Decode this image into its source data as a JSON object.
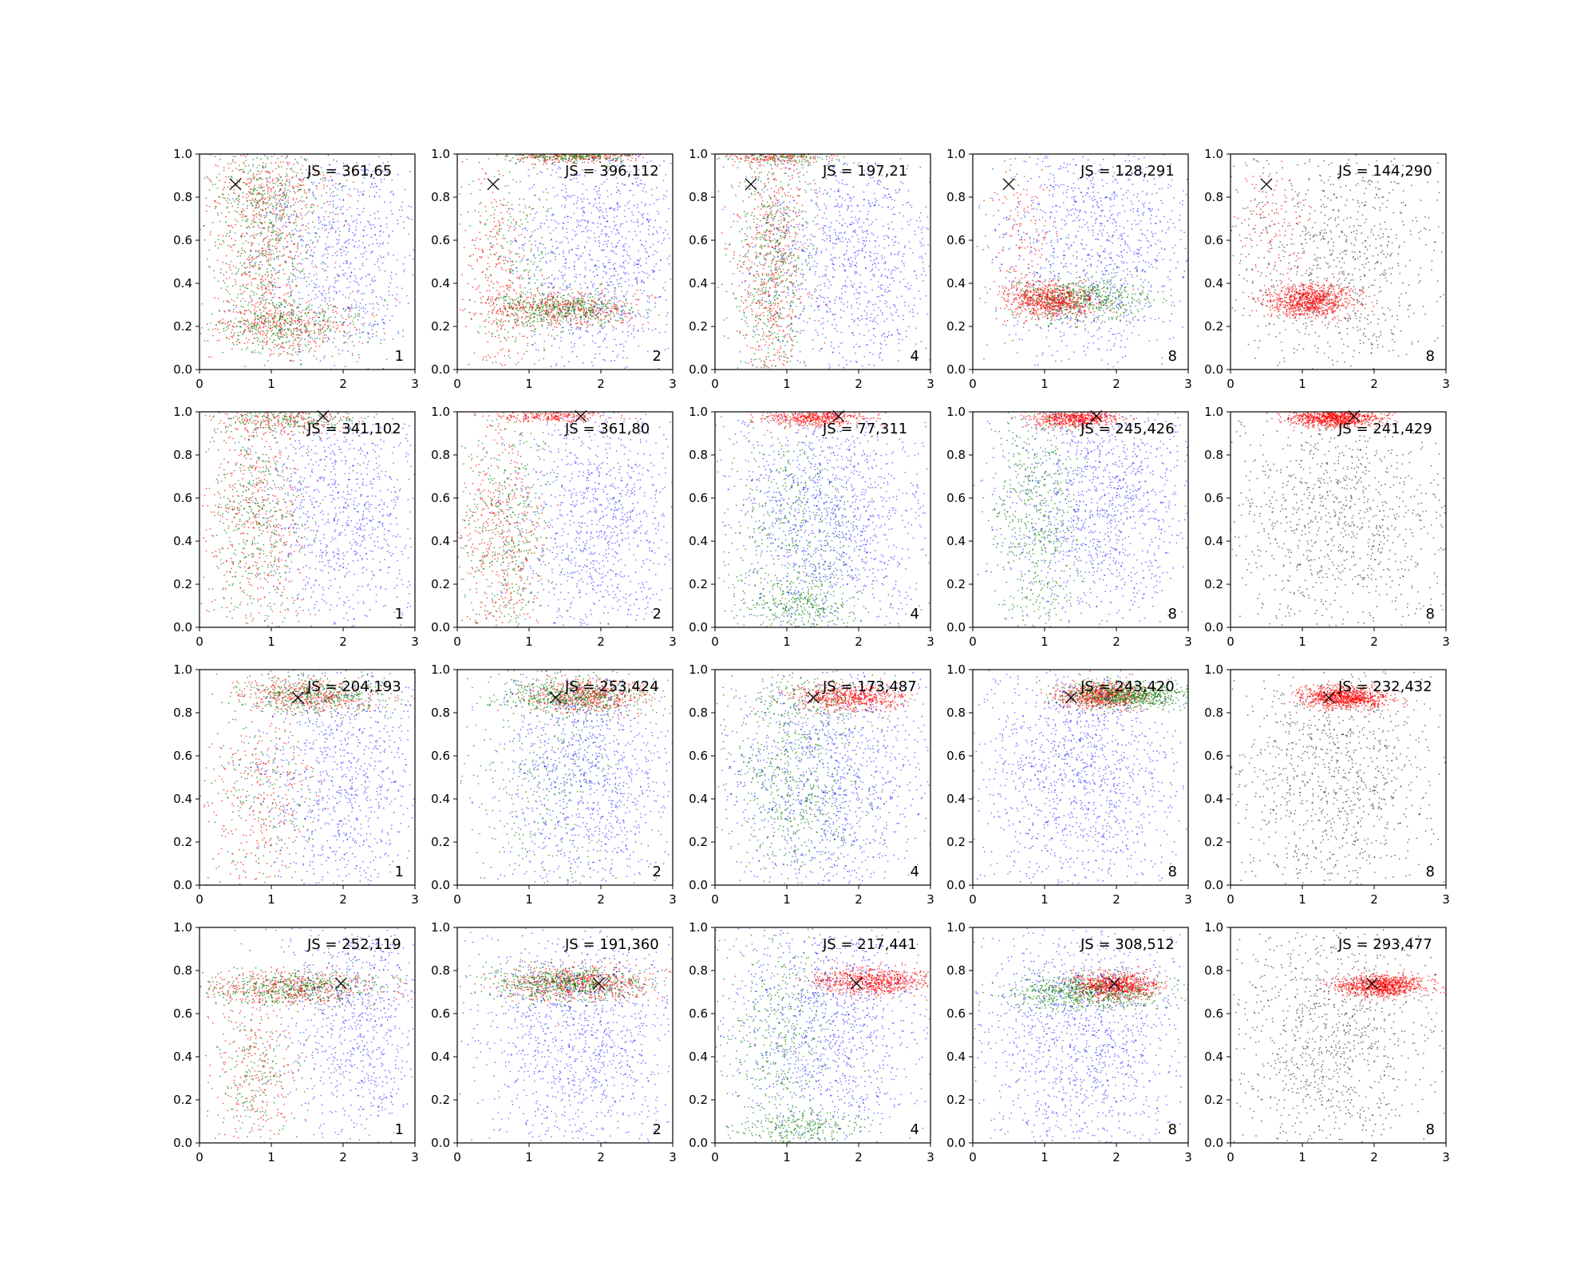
{
  "chart_data": {
    "type": "scatter",
    "grid": false,
    "xlim": [
      0,
      3
    ],
    "ylim": [
      0,
      1
    ],
    "x_ticks": [
      "0",
      "1",
      "2",
      "3"
    ],
    "y_ticks": [
      "0.0",
      "0.2",
      "0.4",
      "0.6",
      "0.8",
      "1.0"
    ],
    "series_colors": {
      "background": "#0000ff",
      "mid": "#007f00",
      "focus": "#ff0000",
      "gray": "#333333"
    },
    "marker_color": "#000000",
    "rows": [
      {
        "target": [
          0.5,
          0.86
        ],
        "panels": [
          {
            "js_label": "JS = 361,65",
            "corner_label": "1",
            "clusters": [
              {
                "color": "focus",
                "n": 350,
                "cx": 1.2,
                "cy": 0.2,
                "sx": 0.55,
                "sy": 0.06
              },
              {
                "color": "mid",
                "n": 350,
                "cx": 1.2,
                "cy": 0.2,
                "sx": 0.55,
                "sy": 0.06
              },
              {
                "color": "focus",
                "n": 500,
                "cx": 0.9,
                "cy": 0.6,
                "sx": 0.35,
                "sy": 0.25
              },
              {
                "color": "mid",
                "n": 500,
                "cx": 0.9,
                "cy": 0.6,
                "sx": 0.35,
                "sy": 0.25
              },
              {
                "color": "focus",
                "n": 150,
                "cx": 1.0,
                "cy": 0.85,
                "sx": 0.5,
                "sy": 0.08
              },
              {
                "color": "mid",
                "n": 150,
                "cx": 1.0,
                "cy": 0.85,
                "sx": 0.5,
                "sy": 0.08
              },
              {
                "color": "background",
                "n": 900,
                "cx": 2.0,
                "cy": 0.55,
                "sx": 0.6,
                "sy": 0.3
              }
            ]
          },
          {
            "js_label": "JS = 396,112",
            "corner_label": "2",
            "clusters": [
              {
                "color": "focus",
                "n": 450,
                "cx": 1.5,
                "cy": 0.28,
                "sx": 0.5,
                "sy": 0.04
              },
              {
                "color": "mid",
                "n": 450,
                "cx": 1.5,
                "cy": 0.28,
                "sx": 0.5,
                "sy": 0.04
              },
              {
                "color": "focus",
                "n": 250,
                "cx": 1.6,
                "cy": 0.99,
                "sx": 0.45,
                "sy": 0.015
              },
              {
                "color": "mid",
                "n": 250,
                "cx": 1.6,
                "cy": 0.99,
                "sx": 0.45,
                "sy": 0.015
              },
              {
                "color": "focus",
                "n": 300,
                "cx": 0.6,
                "cy": 0.45,
                "sx": 0.25,
                "sy": 0.25
              },
              {
                "color": "mid",
                "n": 250,
                "cx": 0.8,
                "cy": 0.5,
                "sx": 0.3,
                "sy": 0.25
              },
              {
                "color": "background",
                "n": 1100,
                "cx": 2.0,
                "cy": 0.55,
                "sx": 0.6,
                "sy": 0.3
              }
            ]
          },
          {
            "js_label": "JS = 197,21",
            "corner_label": "4",
            "clusters": [
              {
                "color": "focus",
                "n": 550,
                "cx": 0.8,
                "cy": 0.5,
                "sx": 0.25,
                "sy": 0.3
              },
              {
                "color": "mid",
                "n": 550,
                "cx": 0.8,
                "cy": 0.5,
                "sx": 0.25,
                "sy": 0.3
              },
              {
                "color": "focus",
                "n": 200,
                "cx": 0.9,
                "cy": 0.99,
                "sx": 0.4,
                "sy": 0.02
              },
              {
                "color": "mid",
                "n": 150,
                "cx": 0.9,
                "cy": 0.99,
                "sx": 0.4,
                "sy": 0.02
              },
              {
                "color": "background",
                "n": 1200,
                "cx": 1.9,
                "cy": 0.5,
                "sx": 0.7,
                "sy": 0.3
              }
            ]
          },
          {
            "js_label": "JS = 128,291",
            "corner_label": "8",
            "clusters": [
              {
                "color": "mid",
                "n": 600,
                "cx": 1.5,
                "cy": 0.33,
                "sx": 0.5,
                "sy": 0.05
              },
              {
                "color": "focus",
                "n": 700,
                "cx": 1.1,
                "cy": 0.32,
                "sx": 0.3,
                "sy": 0.04
              },
              {
                "color": "focus",
                "n": 150,
                "cx": 0.7,
                "cy": 0.6,
                "sx": 0.25,
                "sy": 0.2
              },
              {
                "color": "background",
                "n": 1200,
                "cx": 1.7,
                "cy": 0.6,
                "sx": 0.7,
                "sy": 0.3
              }
            ]
          },
          {
            "js_label": "JS = 144,290",
            "corner_label": "8",
            "clusters": [
              {
                "color": "focus",
                "n": 900,
                "cx": 1.1,
                "cy": 0.32,
                "sx": 0.3,
                "sy": 0.04
              },
              {
                "color": "focus",
                "n": 120,
                "cx": 0.6,
                "cy": 0.7,
                "sx": 0.25,
                "sy": 0.15
              },
              {
                "color": "gray",
                "n": 1000,
                "cx": 1.5,
                "cy": 0.5,
                "sx": 0.8,
                "sy": 0.3
              }
            ]
          }
        ]
      },
      {
        "target": [
          1.72,
          0.98
        ],
        "panels": [
          {
            "js_label": "JS = 341,102",
            "corner_label": "1",
            "clusters": [
              {
                "color": "focus",
                "n": 450,
                "cx": 0.8,
                "cy": 0.5,
                "sx": 0.35,
                "sy": 0.28
              },
              {
                "color": "mid",
                "n": 450,
                "cx": 0.8,
                "cy": 0.5,
                "sx": 0.35,
                "sy": 0.28
              },
              {
                "color": "focus",
                "n": 200,
                "cx": 1.2,
                "cy": 0.96,
                "sx": 0.5,
                "sy": 0.03
              },
              {
                "color": "mid",
                "n": 200,
                "cx": 1.2,
                "cy": 0.96,
                "sx": 0.5,
                "sy": 0.03
              },
              {
                "color": "background",
                "n": 1000,
                "cx": 2.0,
                "cy": 0.55,
                "sx": 0.6,
                "sy": 0.3
              }
            ]
          },
          {
            "js_label": "JS = 361,80",
            "corner_label": "2",
            "clusters": [
              {
                "color": "focus",
                "n": 450,
                "cx": 0.6,
                "cy": 0.4,
                "sx": 0.3,
                "sy": 0.28
              },
              {
                "color": "mid",
                "n": 450,
                "cx": 0.7,
                "cy": 0.45,
                "sx": 0.3,
                "sy": 0.28
              },
              {
                "color": "focus",
                "n": 250,
                "cx": 1.3,
                "cy": 0.98,
                "sx": 0.4,
                "sy": 0.015
              },
              {
                "color": "background",
                "n": 1100,
                "cx": 2.0,
                "cy": 0.5,
                "sx": 0.6,
                "sy": 0.3
              }
            ]
          },
          {
            "js_label": "JS = 77,311",
            "corner_label": "4",
            "clusters": [
              {
                "color": "focus",
                "n": 500,
                "cx": 1.4,
                "cy": 0.97,
                "sx": 0.35,
                "sy": 0.02
              },
              {
                "color": "mid",
                "n": 500,
                "cx": 1.1,
                "cy": 0.4,
                "sx": 0.45,
                "sy": 0.3
              },
              {
                "color": "mid",
                "n": 250,
                "cx": 1.2,
                "cy": 0.1,
                "sx": 0.4,
                "sy": 0.06
              },
              {
                "color": "background",
                "n": 1400,
                "cx": 1.6,
                "cy": 0.5,
                "sx": 0.7,
                "sy": 0.3
              }
            ]
          },
          {
            "js_label": "JS = 245,426",
            "corner_label": "8",
            "clusters": [
              {
                "color": "focus",
                "n": 600,
                "cx": 1.4,
                "cy": 0.97,
                "sx": 0.3,
                "sy": 0.02
              },
              {
                "color": "mid",
                "n": 600,
                "cx": 0.9,
                "cy": 0.5,
                "sx": 0.3,
                "sy": 0.3
              },
              {
                "color": "background",
                "n": 1400,
                "cx": 1.8,
                "cy": 0.6,
                "sx": 0.7,
                "sy": 0.3
              }
            ]
          },
          {
            "js_label": "JS = 241,429",
            "corner_label": "8",
            "clusters": [
              {
                "color": "focus",
                "n": 900,
                "cx": 1.45,
                "cy": 0.97,
                "sx": 0.3,
                "sy": 0.02
              },
              {
                "color": "gray",
                "n": 1100,
                "cx": 1.5,
                "cy": 0.5,
                "sx": 0.8,
                "sy": 0.3
              }
            ]
          }
        ]
      },
      {
        "target": [
          1.37,
          0.87
        ],
        "panels": [
          {
            "js_label": "JS = 204,193",
            "corner_label": "1",
            "clusters": [
              {
                "color": "focus",
                "n": 400,
                "cx": 1.6,
                "cy": 0.88,
                "sx": 0.5,
                "sy": 0.04
              },
              {
                "color": "mid",
                "n": 400,
                "cx": 1.6,
                "cy": 0.88,
                "sx": 0.5,
                "sy": 0.04
              },
              {
                "color": "focus",
                "n": 300,
                "cx": 0.8,
                "cy": 0.4,
                "sx": 0.4,
                "sy": 0.25
              },
              {
                "color": "mid",
                "n": 200,
                "cx": 0.9,
                "cy": 0.45,
                "sx": 0.4,
                "sy": 0.25
              },
              {
                "color": "background",
                "n": 1000,
                "cx": 2.0,
                "cy": 0.5,
                "sx": 0.6,
                "sy": 0.3
              }
            ]
          },
          {
            "js_label": "JS = 253,424",
            "corner_label": "2",
            "clusters": [
              {
                "color": "focus",
                "n": 500,
                "cx": 1.8,
                "cy": 0.88,
                "sx": 0.4,
                "sy": 0.04
              },
              {
                "color": "mid",
                "n": 500,
                "cx": 1.6,
                "cy": 0.88,
                "sx": 0.5,
                "sy": 0.04
              },
              {
                "color": "mid",
                "n": 300,
                "cx": 1.2,
                "cy": 0.4,
                "sx": 0.6,
                "sy": 0.3
              },
              {
                "color": "background",
                "n": 1200,
                "cx": 1.8,
                "cy": 0.5,
                "sx": 0.6,
                "sy": 0.3
              }
            ]
          },
          {
            "js_label": "JS = 173,487",
            "corner_label": "4",
            "clusters": [
              {
                "color": "focus",
                "n": 600,
                "cx": 1.9,
                "cy": 0.87,
                "sx": 0.4,
                "sy": 0.03
              },
              {
                "color": "mid",
                "n": 500,
                "cx": 1.1,
                "cy": 0.45,
                "sx": 0.45,
                "sy": 0.2
              },
              {
                "color": "mid",
                "n": 200,
                "cx": 1.2,
                "cy": 0.85,
                "sx": 0.5,
                "sy": 0.08
              },
              {
                "color": "background",
                "n": 1300,
                "cx": 1.6,
                "cy": 0.5,
                "sx": 0.7,
                "sy": 0.3
              }
            ]
          },
          {
            "js_label": "JS = 243,420",
            "corner_label": "8",
            "clusters": [
              {
                "color": "focus",
                "n": 700,
                "cx": 1.8,
                "cy": 0.88,
                "sx": 0.3,
                "sy": 0.03
              },
              {
                "color": "mid",
                "n": 700,
                "cx": 2.2,
                "cy": 0.88,
                "sx": 0.45,
                "sy": 0.03
              },
              {
                "color": "background",
                "n": 1400,
                "cx": 1.5,
                "cy": 0.5,
                "sx": 0.7,
                "sy": 0.3
              }
            ]
          },
          {
            "js_label": "JS = 232,432",
            "corner_label": "8",
            "clusters": [
              {
                "color": "focus",
                "n": 900,
                "cx": 1.6,
                "cy": 0.87,
                "sx": 0.3,
                "sy": 0.025
              },
              {
                "color": "gray",
                "n": 1100,
                "cx": 1.4,
                "cy": 0.5,
                "sx": 0.7,
                "sy": 0.3
              }
            ]
          }
        ]
      },
      {
        "target": [
          1.97,
          0.74
        ],
        "panels": [
          {
            "js_label": "JS = 252,119",
            "corner_label": "1",
            "clusters": [
              {
                "color": "focus",
                "n": 450,
                "cx": 1.3,
                "cy": 0.72,
                "sx": 0.6,
                "sy": 0.04
              },
              {
                "color": "mid",
                "n": 450,
                "cx": 1.3,
                "cy": 0.72,
                "sx": 0.6,
                "sy": 0.04
              },
              {
                "color": "focus",
                "n": 250,
                "cx": 0.8,
                "cy": 0.35,
                "sx": 0.3,
                "sy": 0.2
              },
              {
                "color": "mid",
                "n": 200,
                "cx": 0.8,
                "cy": 0.35,
                "sx": 0.3,
                "sy": 0.2
              },
              {
                "color": "background",
                "n": 900,
                "cx": 2.2,
                "cy": 0.55,
                "sx": 0.5,
                "sy": 0.3
              }
            ]
          },
          {
            "js_label": "JS = 191,360",
            "corner_label": "2",
            "clusters": [
              {
                "color": "focus",
                "n": 600,
                "cx": 1.7,
                "cy": 0.74,
                "sx": 0.5,
                "sy": 0.04
              },
              {
                "color": "mid",
                "n": 600,
                "cx": 1.5,
                "cy": 0.74,
                "sx": 0.55,
                "sy": 0.04
              },
              {
                "color": "background",
                "n": 1300,
                "cx": 1.7,
                "cy": 0.5,
                "sx": 0.7,
                "sy": 0.3
              }
            ]
          },
          {
            "js_label": "JS = 217,441",
            "corner_label": "4",
            "clusters": [
              {
                "color": "focus",
                "n": 700,
                "cx": 2.2,
                "cy": 0.75,
                "sx": 0.4,
                "sy": 0.03
              },
              {
                "color": "mid",
                "n": 400,
                "cx": 0.9,
                "cy": 0.5,
                "sx": 0.4,
                "sy": 0.25
              },
              {
                "color": "mid",
                "n": 250,
                "cx": 1.2,
                "cy": 0.07,
                "sx": 0.4,
                "sy": 0.04
              },
              {
                "color": "background",
                "n": 1300,
                "cx": 1.6,
                "cy": 0.55,
                "sx": 0.7,
                "sy": 0.3
              }
            ]
          },
          {
            "js_label": "JS = 308,512",
            "corner_label": "8",
            "clusters": [
              {
                "color": "mid",
                "n": 700,
                "cx": 1.6,
                "cy": 0.7,
                "sx": 0.5,
                "sy": 0.04
              },
              {
                "color": "focus",
                "n": 700,
                "cx": 2.0,
                "cy": 0.73,
                "sx": 0.3,
                "sy": 0.03
              },
              {
                "color": "background",
                "n": 1400,
                "cx": 1.5,
                "cy": 0.5,
                "sx": 0.7,
                "sy": 0.3
              }
            ]
          },
          {
            "js_label": "JS = 293,477",
            "corner_label": "8",
            "clusters": [
              {
                "color": "focus",
                "n": 900,
                "cx": 2.1,
                "cy": 0.73,
                "sx": 0.3,
                "sy": 0.025
              },
              {
                "color": "gray",
                "n": 1100,
                "cx": 1.4,
                "cy": 0.5,
                "sx": 0.7,
                "sy": 0.3
              }
            ]
          }
        ]
      }
    ]
  }
}
